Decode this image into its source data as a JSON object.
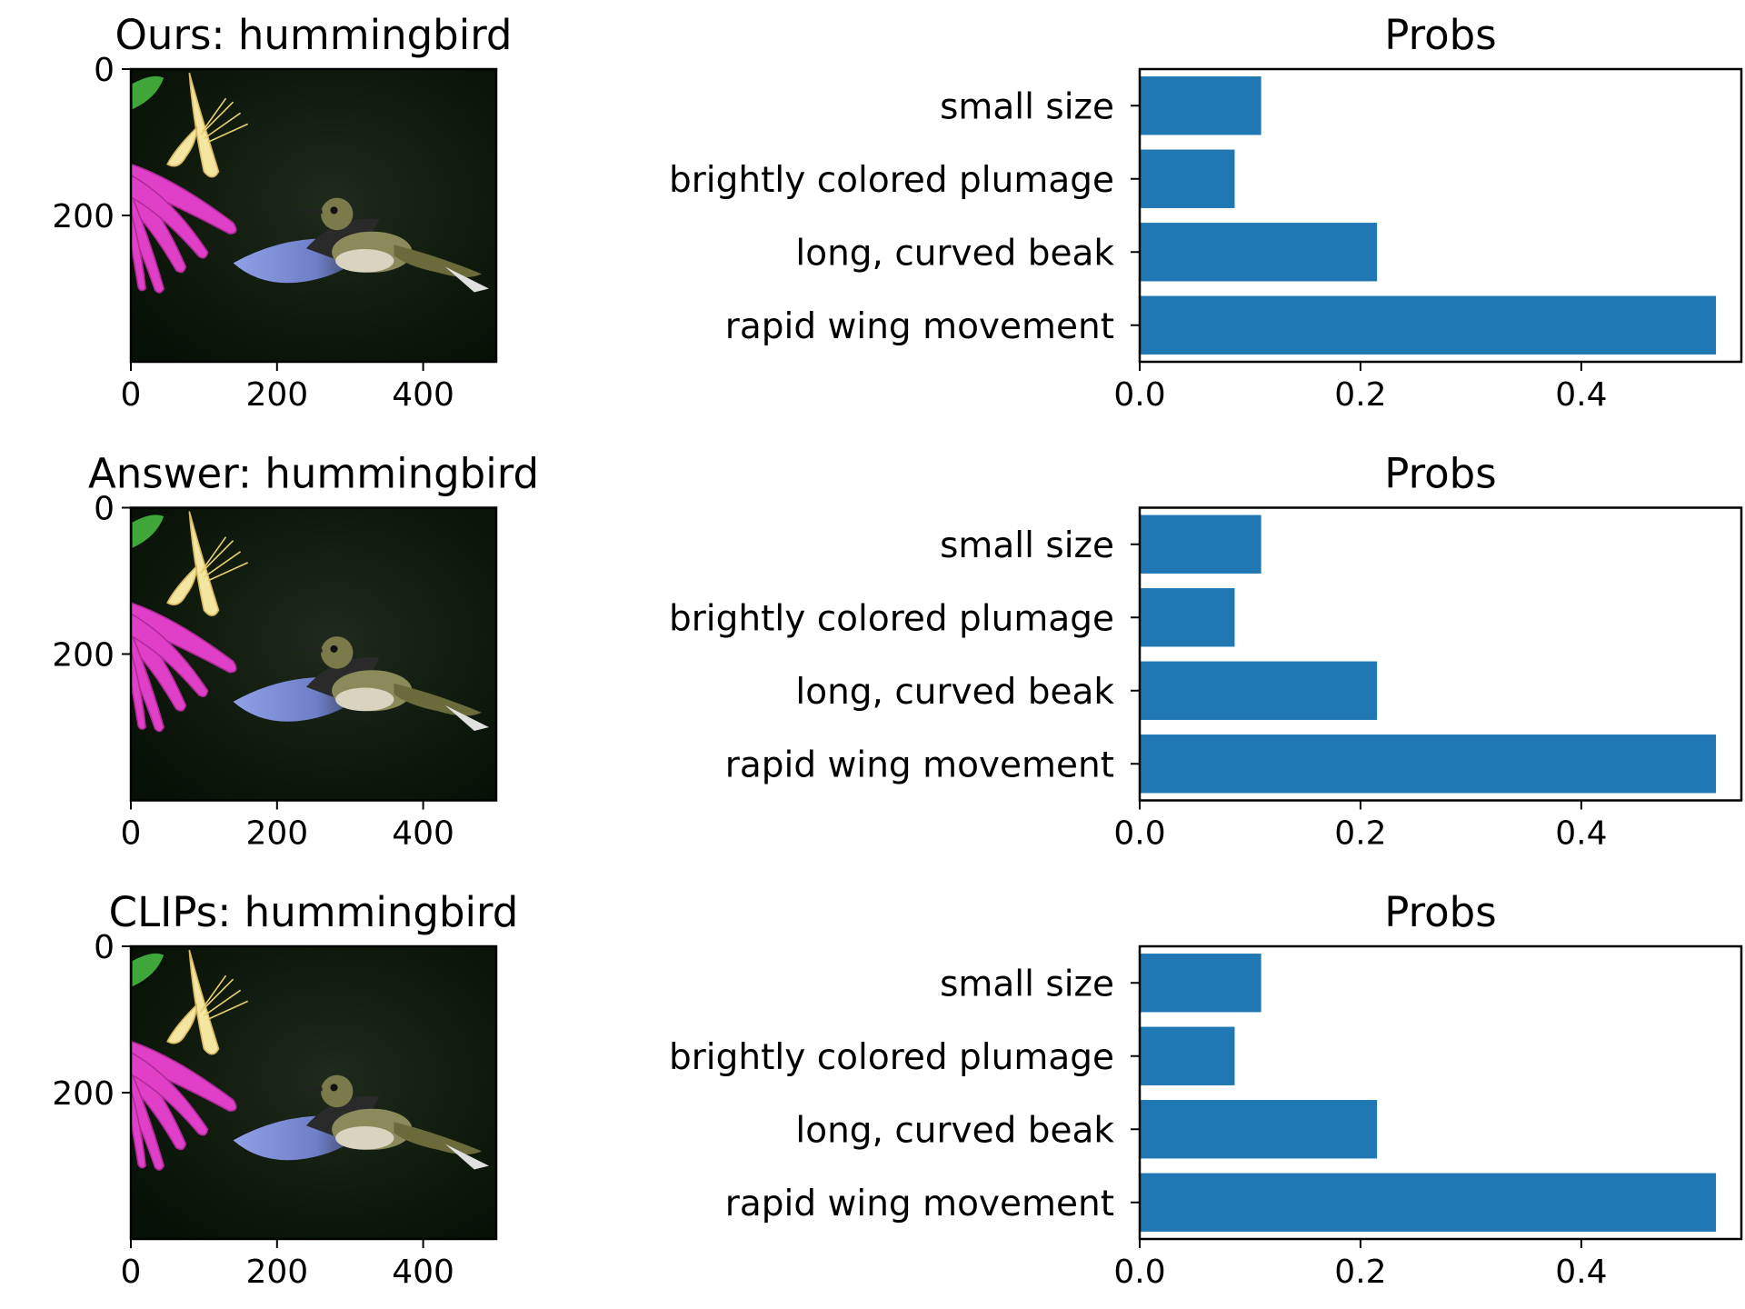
{
  "chart_data": [
    {
      "type": "image",
      "title": "Ours: hummingbird",
      "xticks": [
        "0",
        "200",
        "400"
      ],
      "yticks": [
        "0",
        "200"
      ],
      "image_size": [
        500,
        400
      ],
      "image_description_icon": "hummingbird-photo"
    },
    {
      "type": "bar",
      "orientation": "horizontal",
      "title": "Probs",
      "categories": [
        "small size",
        "brightly colored plumage",
        "long, curved beak",
        "rapid wing movement"
      ],
      "values": [
        0.11,
        0.086,
        0.215,
        0.522
      ],
      "xlim": [
        0,
        0.545
      ],
      "xticks": [
        "0.0",
        "0.2",
        "0.4"
      ],
      "color": "#1f77b4"
    },
    {
      "type": "image",
      "title": "Answer: hummingbird",
      "xticks": [
        "0",
        "200",
        "400"
      ],
      "yticks": [
        "0",
        "200"
      ],
      "image_size": [
        500,
        400
      ],
      "image_description_icon": "hummingbird-photo"
    },
    {
      "type": "bar",
      "orientation": "horizontal",
      "title": "Probs",
      "categories": [
        "small size",
        "brightly colored plumage",
        "long, curved beak",
        "rapid wing movement"
      ],
      "values": [
        0.11,
        0.086,
        0.215,
        0.522
      ],
      "xlim": [
        0,
        0.545
      ],
      "xticks": [
        "0.0",
        "0.2",
        "0.4"
      ],
      "color": "#1f77b4"
    },
    {
      "type": "image",
      "title": "CLIPs: hummingbird",
      "xticks": [
        "0",
        "200",
        "400"
      ],
      "yticks": [
        "0",
        "200"
      ],
      "image_size": [
        500,
        400
      ],
      "image_description_icon": "hummingbird-photo"
    },
    {
      "type": "bar",
      "orientation": "horizontal",
      "title": "Probs",
      "categories": [
        "small size",
        "brightly colored plumage",
        "long, curved beak",
        "rapid wing movement"
      ],
      "values": [
        0.11,
        0.086,
        0.215,
        0.522
      ],
      "xlim": [
        0,
        0.545
      ],
      "xticks": [
        "0.0",
        "0.2",
        "0.4"
      ],
      "color": "#1f77b4"
    }
  ]
}
